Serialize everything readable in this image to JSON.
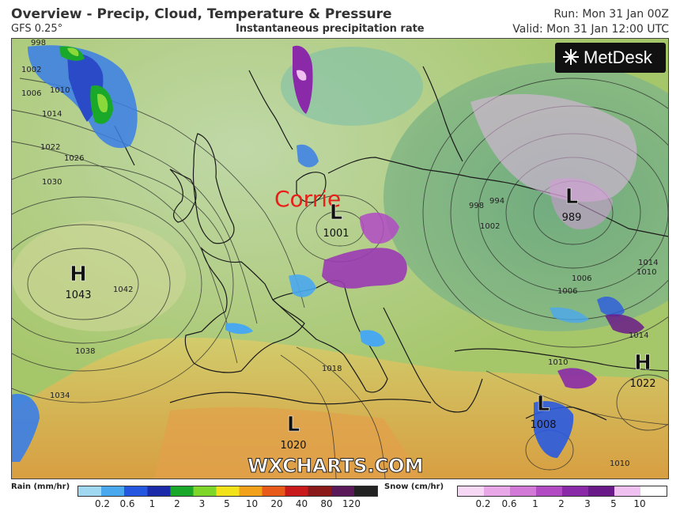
{
  "header": {
    "title": "Overview - Precip, Cloud, Temperature & Pressure",
    "model": "GFS 0.25°",
    "product": "Instantaneous precipitation rate",
    "run": "Run: Mon 31 Jan 00Z",
    "valid": "Valid: Mon 31 Jan 12:00 UTC"
  },
  "logo": {
    "text": "MetDesk"
  },
  "watermark": "WXCHARTS.COM",
  "annotation": {
    "text": "Corrie",
    "color": "#e8201a"
  },
  "pressure_centers": [
    {
      "type": "H",
      "value": "1043"
    },
    {
      "type": "L",
      "value": "1001"
    },
    {
      "type": "L",
      "value": "989"
    },
    {
      "type": "H",
      "value": "1022"
    },
    {
      "type": "L",
      "value": "1008"
    },
    {
      "type": "L",
      "value": "1020"
    }
  ],
  "isobar_labels": [
    "998",
    "1002",
    "1006",
    "1010",
    "1014",
    "1022",
    "1026",
    "1030",
    "1034",
    "1038",
    "1042",
    "1018",
    "998",
    "994",
    "1002",
    "1006",
    "1010",
    "1014",
    "1010",
    "1014",
    "1010",
    "1006"
  ],
  "legend": {
    "rain": {
      "title": "Rain (mm/hr)",
      "ticks": [
        "0.2",
        "0.6",
        "1",
        "2",
        "3",
        "5",
        "10",
        "20",
        "40",
        "80",
        "120"
      ],
      "colors": [
        "#9fd8f0",
        "#4aa8ef",
        "#2456e0",
        "#1a2aa8",
        "#1aa82a",
        "#7ed62a",
        "#f2e21a",
        "#f2a21a",
        "#e85a1a",
        "#c81a1a",
        "#8a1a1a",
        "#5a1a5a",
        "#222222"
      ]
    },
    "snow": {
      "title": "Snow (cm/hr)",
      "ticks": [
        "0.2",
        "0.6",
        "1",
        "2",
        "3",
        "5",
        "10"
      ],
      "colors": [
        "#f6d8f4",
        "#e8a8e8",
        "#d278d6",
        "#b24ac4",
        "#8a2aa8",
        "#6a1a88",
        "#f0c0f0",
        "#ffffff"
      ]
    }
  },
  "colors": {
    "background_land": "#a8c85a",
    "sea": "#7ab87a",
    "sahara": "#e0a040",
    "rain": "#2456e0",
    "snow": "#9a3ab4"
  }
}
